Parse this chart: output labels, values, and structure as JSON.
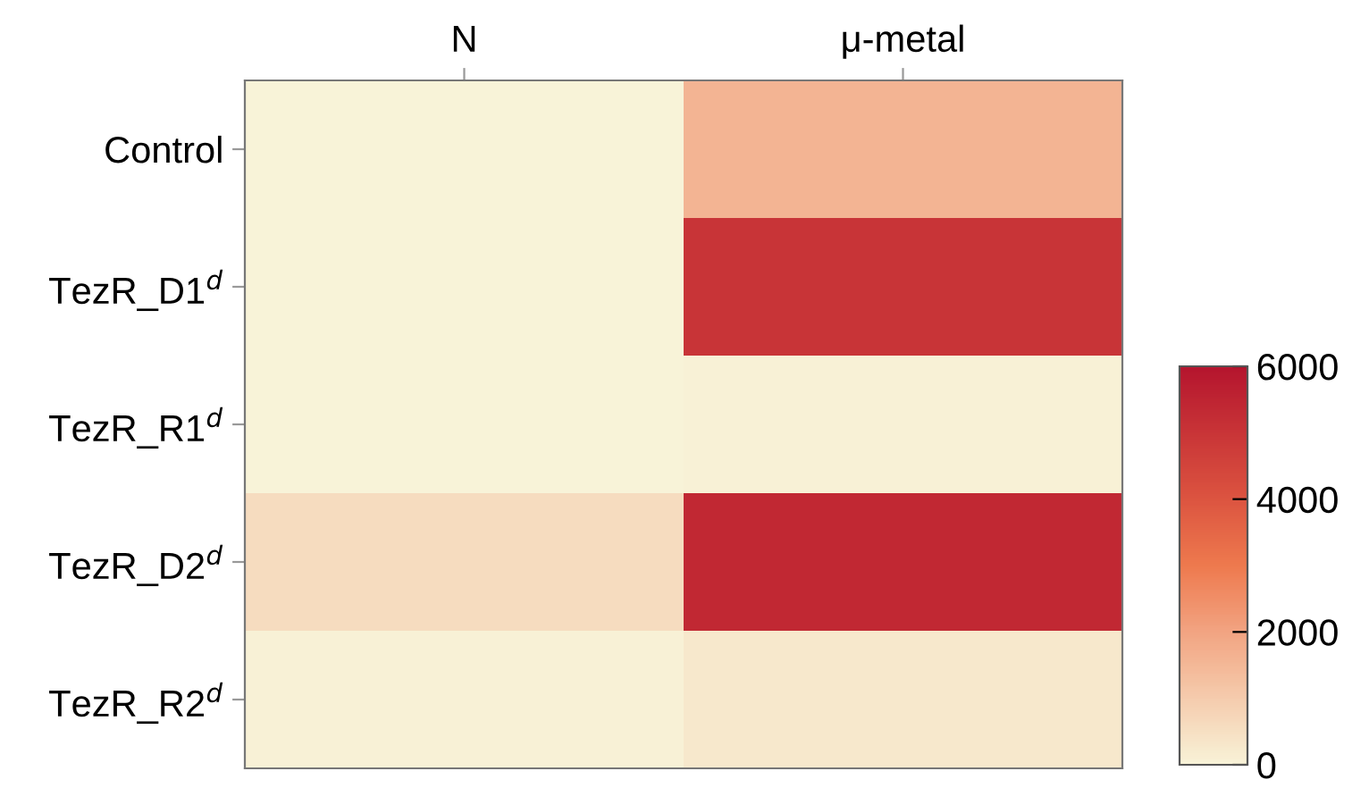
{
  "chart_data": {
    "type": "heatmap",
    "categories": [
      "N",
      "μ-metal"
    ],
    "y_categories": [
      "Control",
      "TezR_D1$^{d}$",
      "TezR_R1$^{d}$",
      "TezR_D2$^{d}$",
      "TezR_R2$^{d}$"
    ],
    "cells": [
      [
        0,
        1600
      ],
      [
        0,
        5000
      ],
      [
        0,
        50
      ],
      [
        600,
        5400
      ],
      [
        50,
        300
      ]
    ],
    "clim": [
      0,
      6000
    ],
    "cticks": [
      0,
      2000,
      4000,
      6000
    ]
  }
}
